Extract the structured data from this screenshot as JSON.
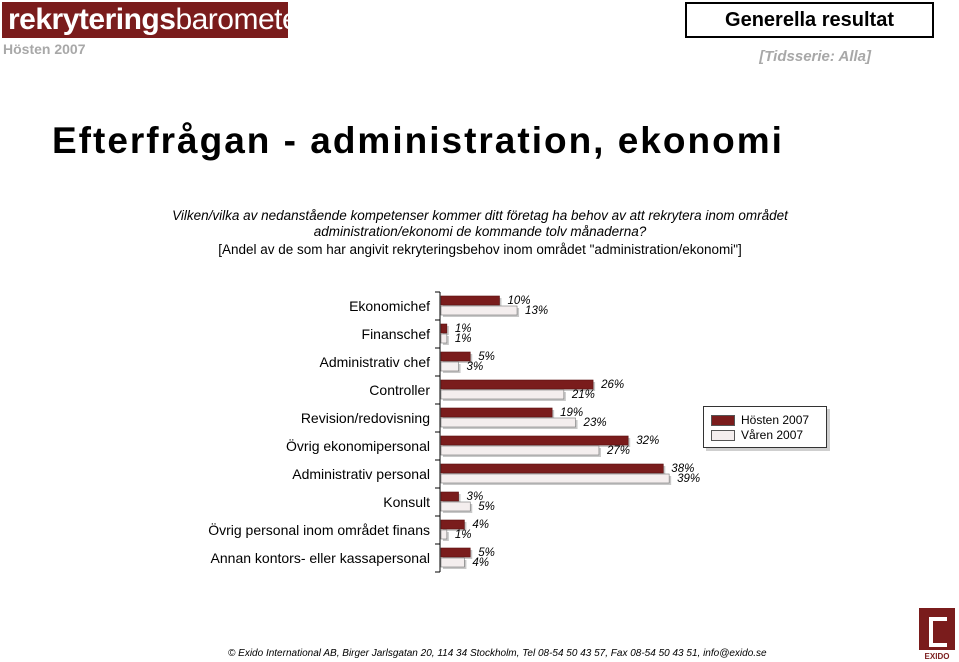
{
  "header": {
    "logo_bold": "rekryterings",
    "logo_light": "barometern",
    "season": "Hösten 2007",
    "section": "Generella resultat",
    "timeseries": "[Tidsserie: Alla]"
  },
  "page": {
    "title": "Efterfrågan - administration, ekonomi",
    "question_line1": "Vilken/vilka av nedanstående kompetenser kommer ditt företag ha behov av att rekrytera inom området",
    "question_line2": "administration/ekonomi de kommande tolv månaderna?",
    "note": "[Andel av de som har angivit rekryteringsbehov inom området \"administration/ekonomi\"]"
  },
  "chart_data": {
    "type": "bar",
    "orientation": "horizontal",
    "categories": [
      "Ekonomichef",
      "Finanschef",
      "Administrativ chef",
      "Controller",
      "Revision/redovisning",
      "Övrig ekonomipersonal",
      "Administrativ personal",
      "Konsult",
      "Övrig personal inom området finans",
      "Annan kontors- eller kassapersonal"
    ],
    "series": [
      {
        "name": "Hösten 2007",
        "color": "#7a1c1c",
        "values": [
          10,
          1,
          5,
          26,
          19,
          32,
          38,
          3,
          4,
          5
        ],
        "labels": [
          "10%",
          "1%",
          "5%",
          "26%",
          "19%",
          "32%",
          "38%",
          "3%",
          "4%",
          "5%"
        ]
      },
      {
        "name": "Våren 2007",
        "color": "#f4eeee",
        "values": [
          13,
          1,
          3,
          21,
          23,
          27,
          39,
          5,
          1,
          4
        ],
        "labels": [
          "13%",
          "1%",
          "3%",
          "21%",
          "23%",
          "27%",
          "39%",
          "5%",
          "1%",
          "4%"
        ]
      }
    ],
    "legend_position": "right",
    "grid": false
  },
  "footer": {
    "text": "© Exido International AB, Birger Jarlsgatan 20, 114 34 Stockholm, Tel 08-54 50 43 57, Fax 08-54 50 43 51, info@exido.se",
    "brand": "EXIDO"
  }
}
